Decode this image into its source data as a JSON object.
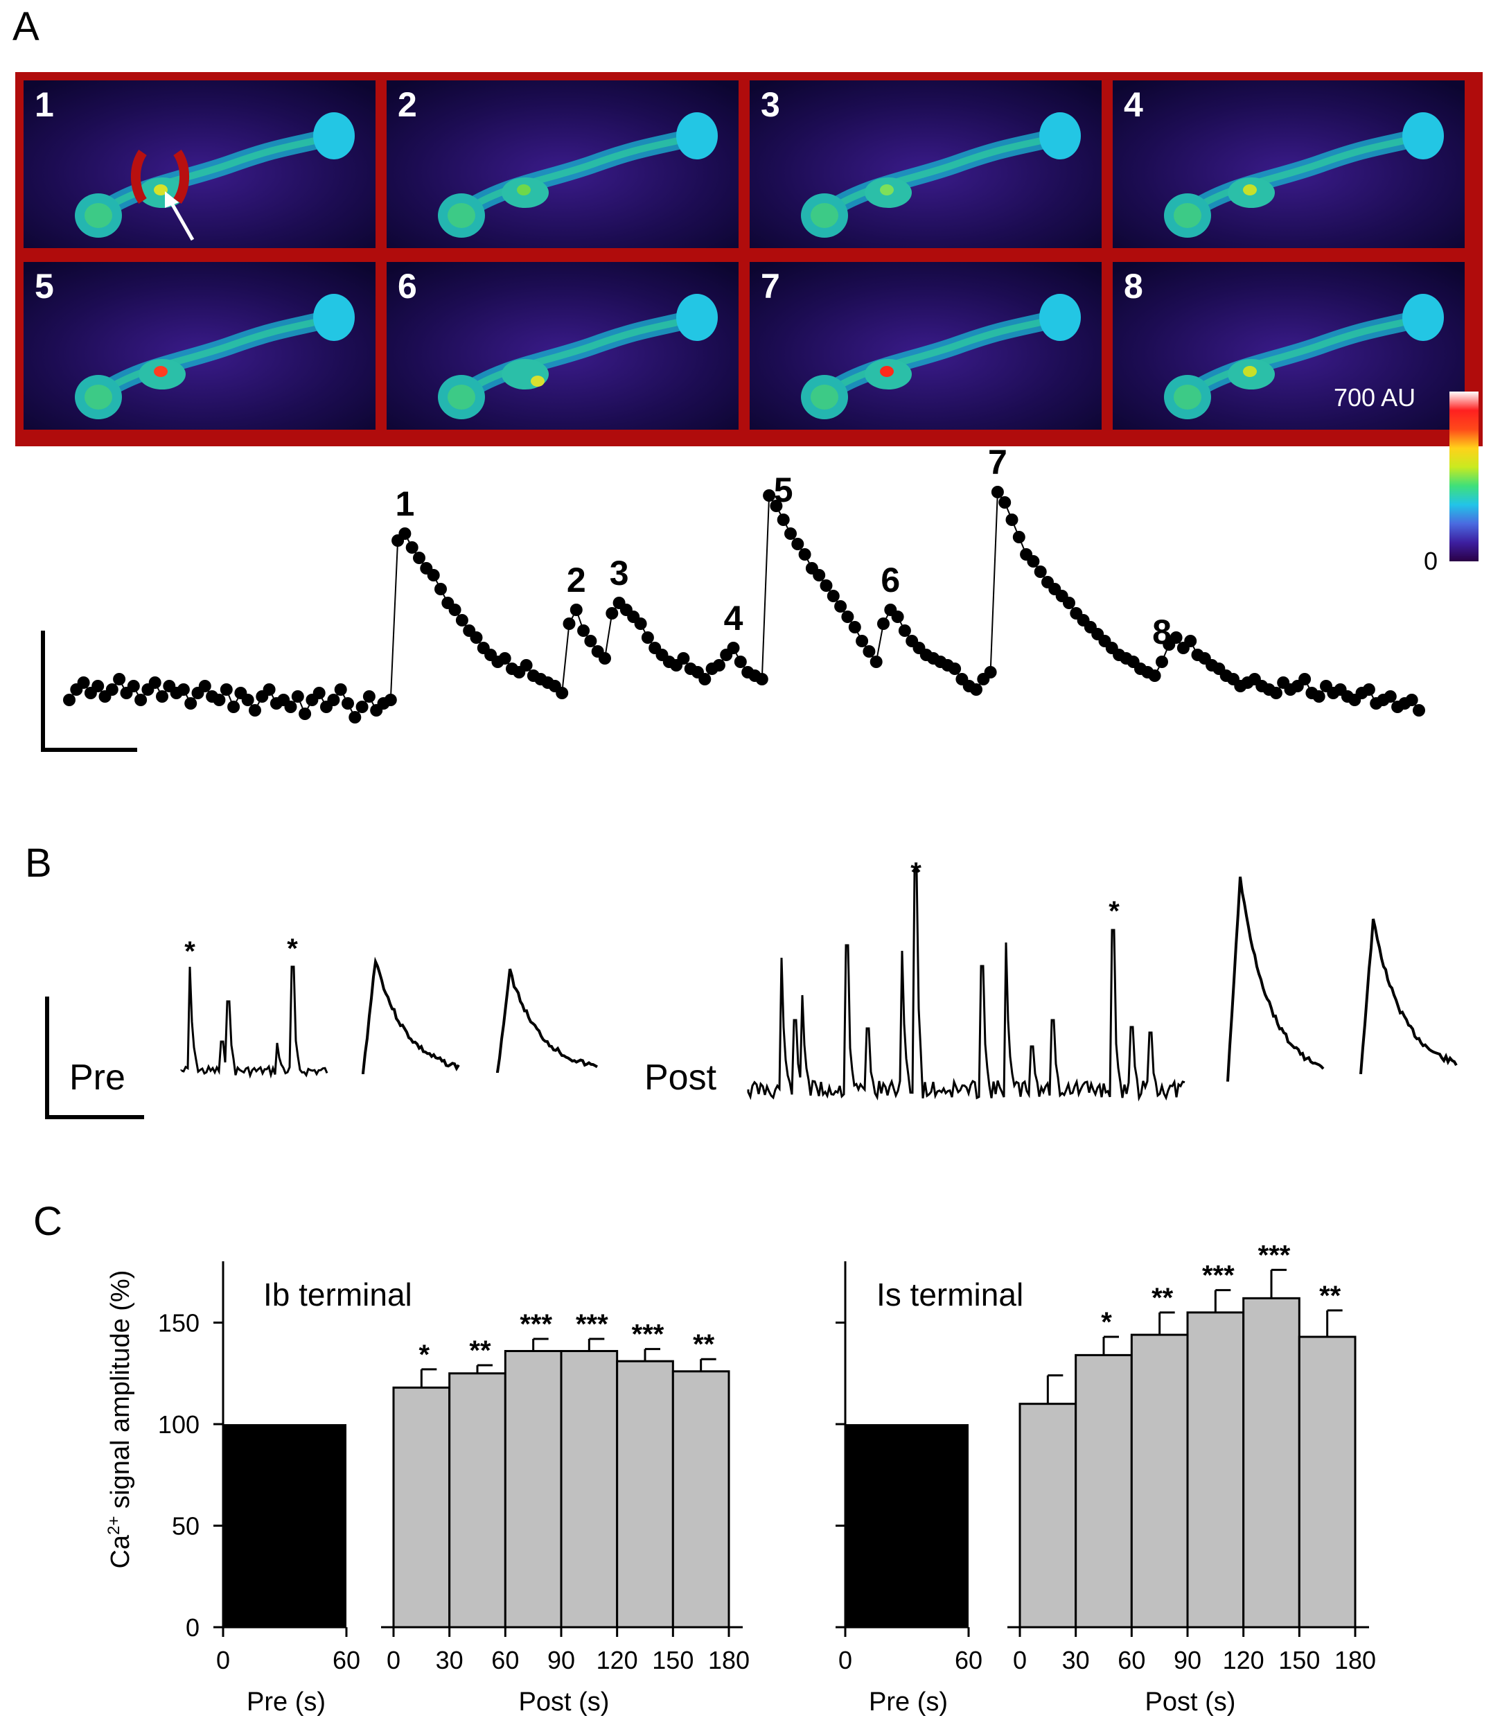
{
  "panel_a": {
    "letter": "A",
    "tiles": [
      "1",
      "2",
      "3",
      "4",
      "5",
      "6",
      "7",
      "8"
    ],
    "colorbar": {
      "max_label": "700 AU",
      "min_label": "0",
      "colors": [
        "#2a0045",
        "#3d1fa0",
        "#4a6be0",
        "#22c4e8",
        "#3fe07a",
        "#c9ea20",
        "#ffd21a",
        "#ff4a1a",
        "#ff2020",
        "#ffffff"
      ]
    }
  },
  "panel_b": {
    "letter": "B",
    "pre_label": "Pre",
    "post_label": "Post",
    "asterisk": "*"
  },
  "panel_c": {
    "letter": "C",
    "ylabel_prefix": "Ca",
    "ylabel_sup": "2+",
    "ylabel_suffix": " signal amplitude (%)"
  },
  "chart_data": [
    {
      "type": "scatter",
      "panel": "A",
      "description_of_series": "Ca2+ fluorescence time series with numbered peaks",
      "points": [
        38,
        41,
        43,
        40,
        42,
        39,
        41,
        44,
        40,
        42,
        38,
        41,
        43,
        39,
        42,
        40,
        41,
        37,
        40,
        42,
        39,
        38,
        41,
        36,
        40,
        38,
        35,
        39,
        41,
        37,
        38,
        36,
        39,
        34,
        38,
        40,
        36,
        38,
        41,
        37,
        33,
        36,
        39,
        35,
        37,
        38,
        84,
        86,
        82,
        79,
        76,
        74,
        70,
        66,
        64,
        61,
        58,
        56,
        53,
        51,
        49,
        50,
        47,
        46,
        48,
        45,
        44,
        43,
        42,
        40,
        60,
        64,
        58,
        55,
        52,
        50,
        63,
        66,
        64,
        62,
        60,
        56,
        53,
        51,
        49,
        48,
        50,
        47,
        46,
        44,
        47,
        48,
        51,
        53,
        49,
        46,
        45,
        44,
        97,
        94,
        90,
        86,
        83,
        80,
        76,
        74,
        71,
        68,
        65,
        62,
        59,
        55,
        52,
        49,
        60,
        64,
        62,
        58,
        55,
        53,
        51,
        50,
        49,
        48,
        47,
        44,
        42,
        41,
        44,
        46,
        98,
        95,
        90,
        85,
        80,
        78,
        75,
        72,
        70,
        68,
        66,
        63,
        61,
        59,
        57,
        55,
        53,
        51,
        50,
        49,
        47,
        46,
        45,
        49,
        54,
        56,
        53,
        55,
        51,
        50,
        48,
        47,
        45,
        44,
        42,
        43,
        44,
        42,
        41,
        40,
        43,
        41,
        42,
        44,
        40,
        39,
        42,
        40,
        41,
        39,
        38,
        40,
        41,
        37,
        38,
        39,
        36,
        37,
        38,
        35
      ],
      "peak_labels": [
        "1",
        "2",
        "3",
        "4",
        "5",
        "6",
        "7",
        "8"
      ],
      "peak_indices": [
        47,
        71,
        77,
        93,
        100,
        115,
        130,
        153
      ]
    },
    {
      "type": "bar",
      "panel": "C",
      "title": "Ib terminal",
      "ylim": [
        0,
        180
      ],
      "yticks": [
        0,
        50,
        100,
        150
      ],
      "pre": {
        "xlabel": "Pre (s)",
        "xticks": [
          0,
          60
        ],
        "value": 100
      },
      "post": {
        "xlabel": "Post (s)",
        "xticks": [
          0,
          30,
          60,
          90,
          120,
          150,
          180
        ],
        "values": [
          118,
          125,
          136,
          136,
          131,
          126
        ],
        "errors": [
          9,
          4,
          6,
          6,
          6,
          6
        ],
        "significance": [
          "*",
          "**",
          "***",
          "***",
          "***",
          "**"
        ]
      }
    },
    {
      "type": "bar",
      "panel": "C",
      "title": "Is terminal",
      "ylim": [
        0,
        180
      ],
      "yticks": [
        0,
        50,
        100,
        150
      ],
      "pre": {
        "xlabel": "Pre (s)",
        "xticks": [
          0,
          60
        ],
        "value": 100
      },
      "post": {
        "xlabel": "Post (s)",
        "xticks": [
          0,
          30,
          60,
          90,
          120,
          150,
          180
        ],
        "values": [
          110,
          134,
          144,
          155,
          162,
          143
        ],
        "errors": [
          14,
          9,
          11,
          11,
          14,
          13
        ],
        "significance": [
          "",
          "*",
          "**",
          "***",
          "***",
          "**"
        ]
      }
    }
  ]
}
